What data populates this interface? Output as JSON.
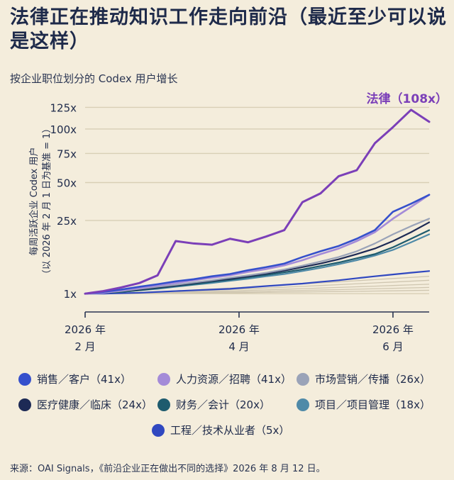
{
  "title": "法律正在推动知识工作走向前沿（最近至少可以说是这样）",
  "subtitle": "按企业职位划分的 Codex 用户增长",
  "footer": "来源：OAI Signals，《前沿企业正在做出不同的选择》2026 年 8 月 12 日。",
  "chart_data": {
    "type": "line",
    "title": "法律正在推动知识工作走向前沿（最近至少可以说是这样）",
    "subtitle": "按企业职位划分的 Codex 用户增长",
    "ylabel": "每周活跃企业 Codex 用户（以 2026 年 2 月 1 日为基准 = 1）",
    "xlabel": "",
    "y_scale": "sqrt",
    "ylim": [
      0,
      128
    ],
    "yticks": [
      {
        "value": 1,
        "label": "1x"
      },
      {
        "value": 25,
        "label": "25x"
      },
      {
        "value": 50,
        "label": "50x"
      },
      {
        "value": 75,
        "label": "75x"
      },
      {
        "value": 100,
        "label": "100x"
      },
      {
        "value": 125,
        "label": "125x"
      }
    ],
    "xlim": [
      0,
      19
    ],
    "xticks": [
      {
        "value": 0,
        "label": "2026 年\n2 月"
      },
      {
        "value": 8.5,
        "label": "2026 年\n4 月"
      },
      {
        "value": 17,
        "label": "2026 年\n6 月"
      }
    ],
    "grid": true,
    "legend_position": "bottom",
    "annotation": {
      "text": "法律（108x）",
      "series": "法律",
      "color": "#7b3fb8"
    },
    "x": [
      0,
      1,
      2,
      3,
      4,
      5,
      6,
      7,
      8,
      9,
      10,
      11,
      12,
      13,
      14,
      15,
      16,
      17,
      18,
      19
    ],
    "series": [
      {
        "name": "法律",
        "color": "#7b3fb8",
        "width": 3,
        "legend": false,
        "values": [
          1,
          1.3,
          1.8,
          2.5,
          4,
          15,
          14,
          13.5,
          16,
          14.5,
          17,
          20,
          36,
          42,
          55,
          60,
          85,
          102,
          122,
          108
        ]
      },
      {
        "name": "销售／客户（41x）",
        "color": "#3550cc",
        "width": 2.6,
        "legend": true,
        "values": [
          1,
          1.2,
          1.5,
          1.9,
          2.3,
          2.8,
          3.2,
          3.8,
          4.3,
          5.2,
          6,
          7,
          9,
          11,
          13,
          16,
          20,
          30,
          35,
          41
        ]
      },
      {
        "name": "人力资源／招聘（41x）",
        "color": "#a48bd8",
        "width": 2.6,
        "legend": true,
        "values": [
          1,
          1.1,
          1.4,
          1.7,
          2.1,
          2.5,
          3,
          3.5,
          4,
          4.8,
          5.5,
          6.5,
          8,
          10,
          12,
          15,
          19,
          26,
          33,
          41
        ]
      },
      {
        "name": "市场营销／传播（26x）",
        "color": "#9aa3b8",
        "width": 2.2,
        "legend": true,
        "values": [
          1,
          1.1,
          1.3,
          1.6,
          1.9,
          2.2,
          2.6,
          3,
          3.5,
          4,
          4.6,
          5.4,
          6.4,
          7.6,
          9,
          11,
          14,
          18,
          22,
          26
        ]
      },
      {
        "name": "医疗健康／临床（24x）",
        "color": "#1d2a55",
        "width": 2.2,
        "legend": true,
        "values": [
          1,
          1.1,
          1.3,
          1.5,
          1.8,
          2.1,
          2.5,
          2.9,
          3.3,
          3.8,
          4.4,
          5.1,
          6,
          7,
          8.3,
          10,
          12,
          15,
          19,
          24
        ]
      },
      {
        "name": "财务／会计（20x）",
        "color": "#1e5b6e",
        "width": 2.2,
        "legend": true,
        "values": [
          1,
          1.1,
          1.2,
          1.4,
          1.7,
          2,
          2.3,
          2.7,
          3.1,
          3.6,
          4.1,
          4.7,
          5.4,
          6.3,
          7.3,
          8.6,
          10,
          12.5,
          16,
          20
        ]
      },
      {
        "name": "项目／项目管理（18x）",
        "color": "#4f8aa8",
        "width": 2.2,
        "legend": true,
        "values": [
          1,
          1.1,
          1.2,
          1.4,
          1.6,
          1.9,
          2.2,
          2.5,
          2.9,
          3.3,
          3.8,
          4.3,
          5,
          5.8,
          6.8,
          8,
          9.5,
          11.5,
          14.5,
          18
        ]
      },
      {
        "name": "工程／技术从业者（5x）",
        "color": "#3048c0",
        "width": 2.2,
        "legend": true,
        "values": [
          1,
          1,
          1.05,
          1.1,
          1.2,
          1.3,
          1.4,
          1.5,
          1.6,
          1.8,
          2,
          2.2,
          2.4,
          2.7,
          3,
          3.4,
          3.8,
          4.2,
          4.6,
          5
        ]
      }
    ]
  }
}
